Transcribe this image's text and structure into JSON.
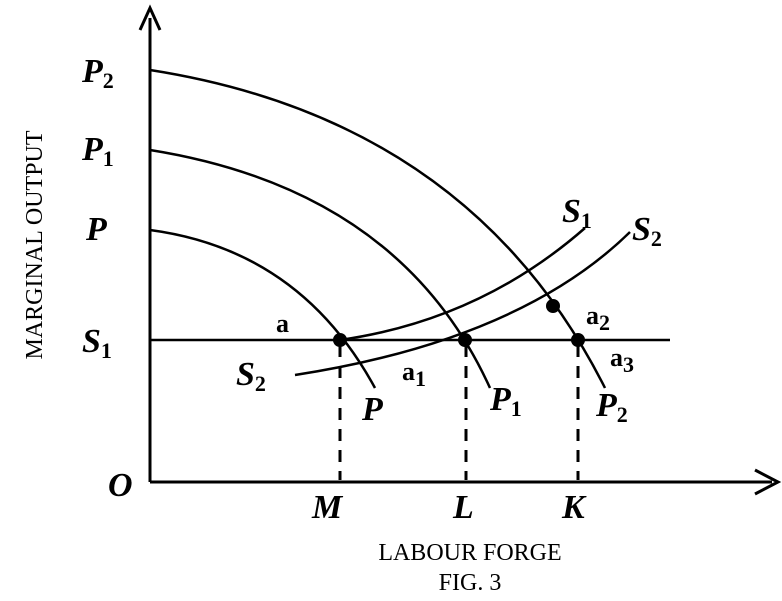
{
  "axes": {
    "y_label": "MARGINAL OUTPUT",
    "x_label": "LABOUR FORGE",
    "origin": "O"
  },
  "caption": "FIG. 3",
  "y_labels": [
    {
      "base": "P",
      "sub": "2"
    },
    {
      "base": "P",
      "sub": "1"
    },
    {
      "base": "P",
      "sub": ""
    },
    {
      "base": "S",
      "sub": "1"
    }
  ],
  "x_labels": [
    "M",
    "L",
    "K"
  ],
  "curve_labels": [
    {
      "base": "P",
      "sub": ""
    },
    {
      "base": "P",
      "sub": "1"
    },
    {
      "base": "P",
      "sub": "2"
    },
    {
      "base": "S",
      "sub": "1"
    },
    {
      "base": "S",
      "sub": "2"
    },
    {
      "base": "S",
      "sub": "2"
    }
  ],
  "points": [
    {
      "base": "a",
      "sub": ""
    },
    {
      "base": "a",
      "sub": "1"
    },
    {
      "base": "a",
      "sub": "2"
    },
    {
      "base": "a",
      "sub": "3"
    }
  ]
}
